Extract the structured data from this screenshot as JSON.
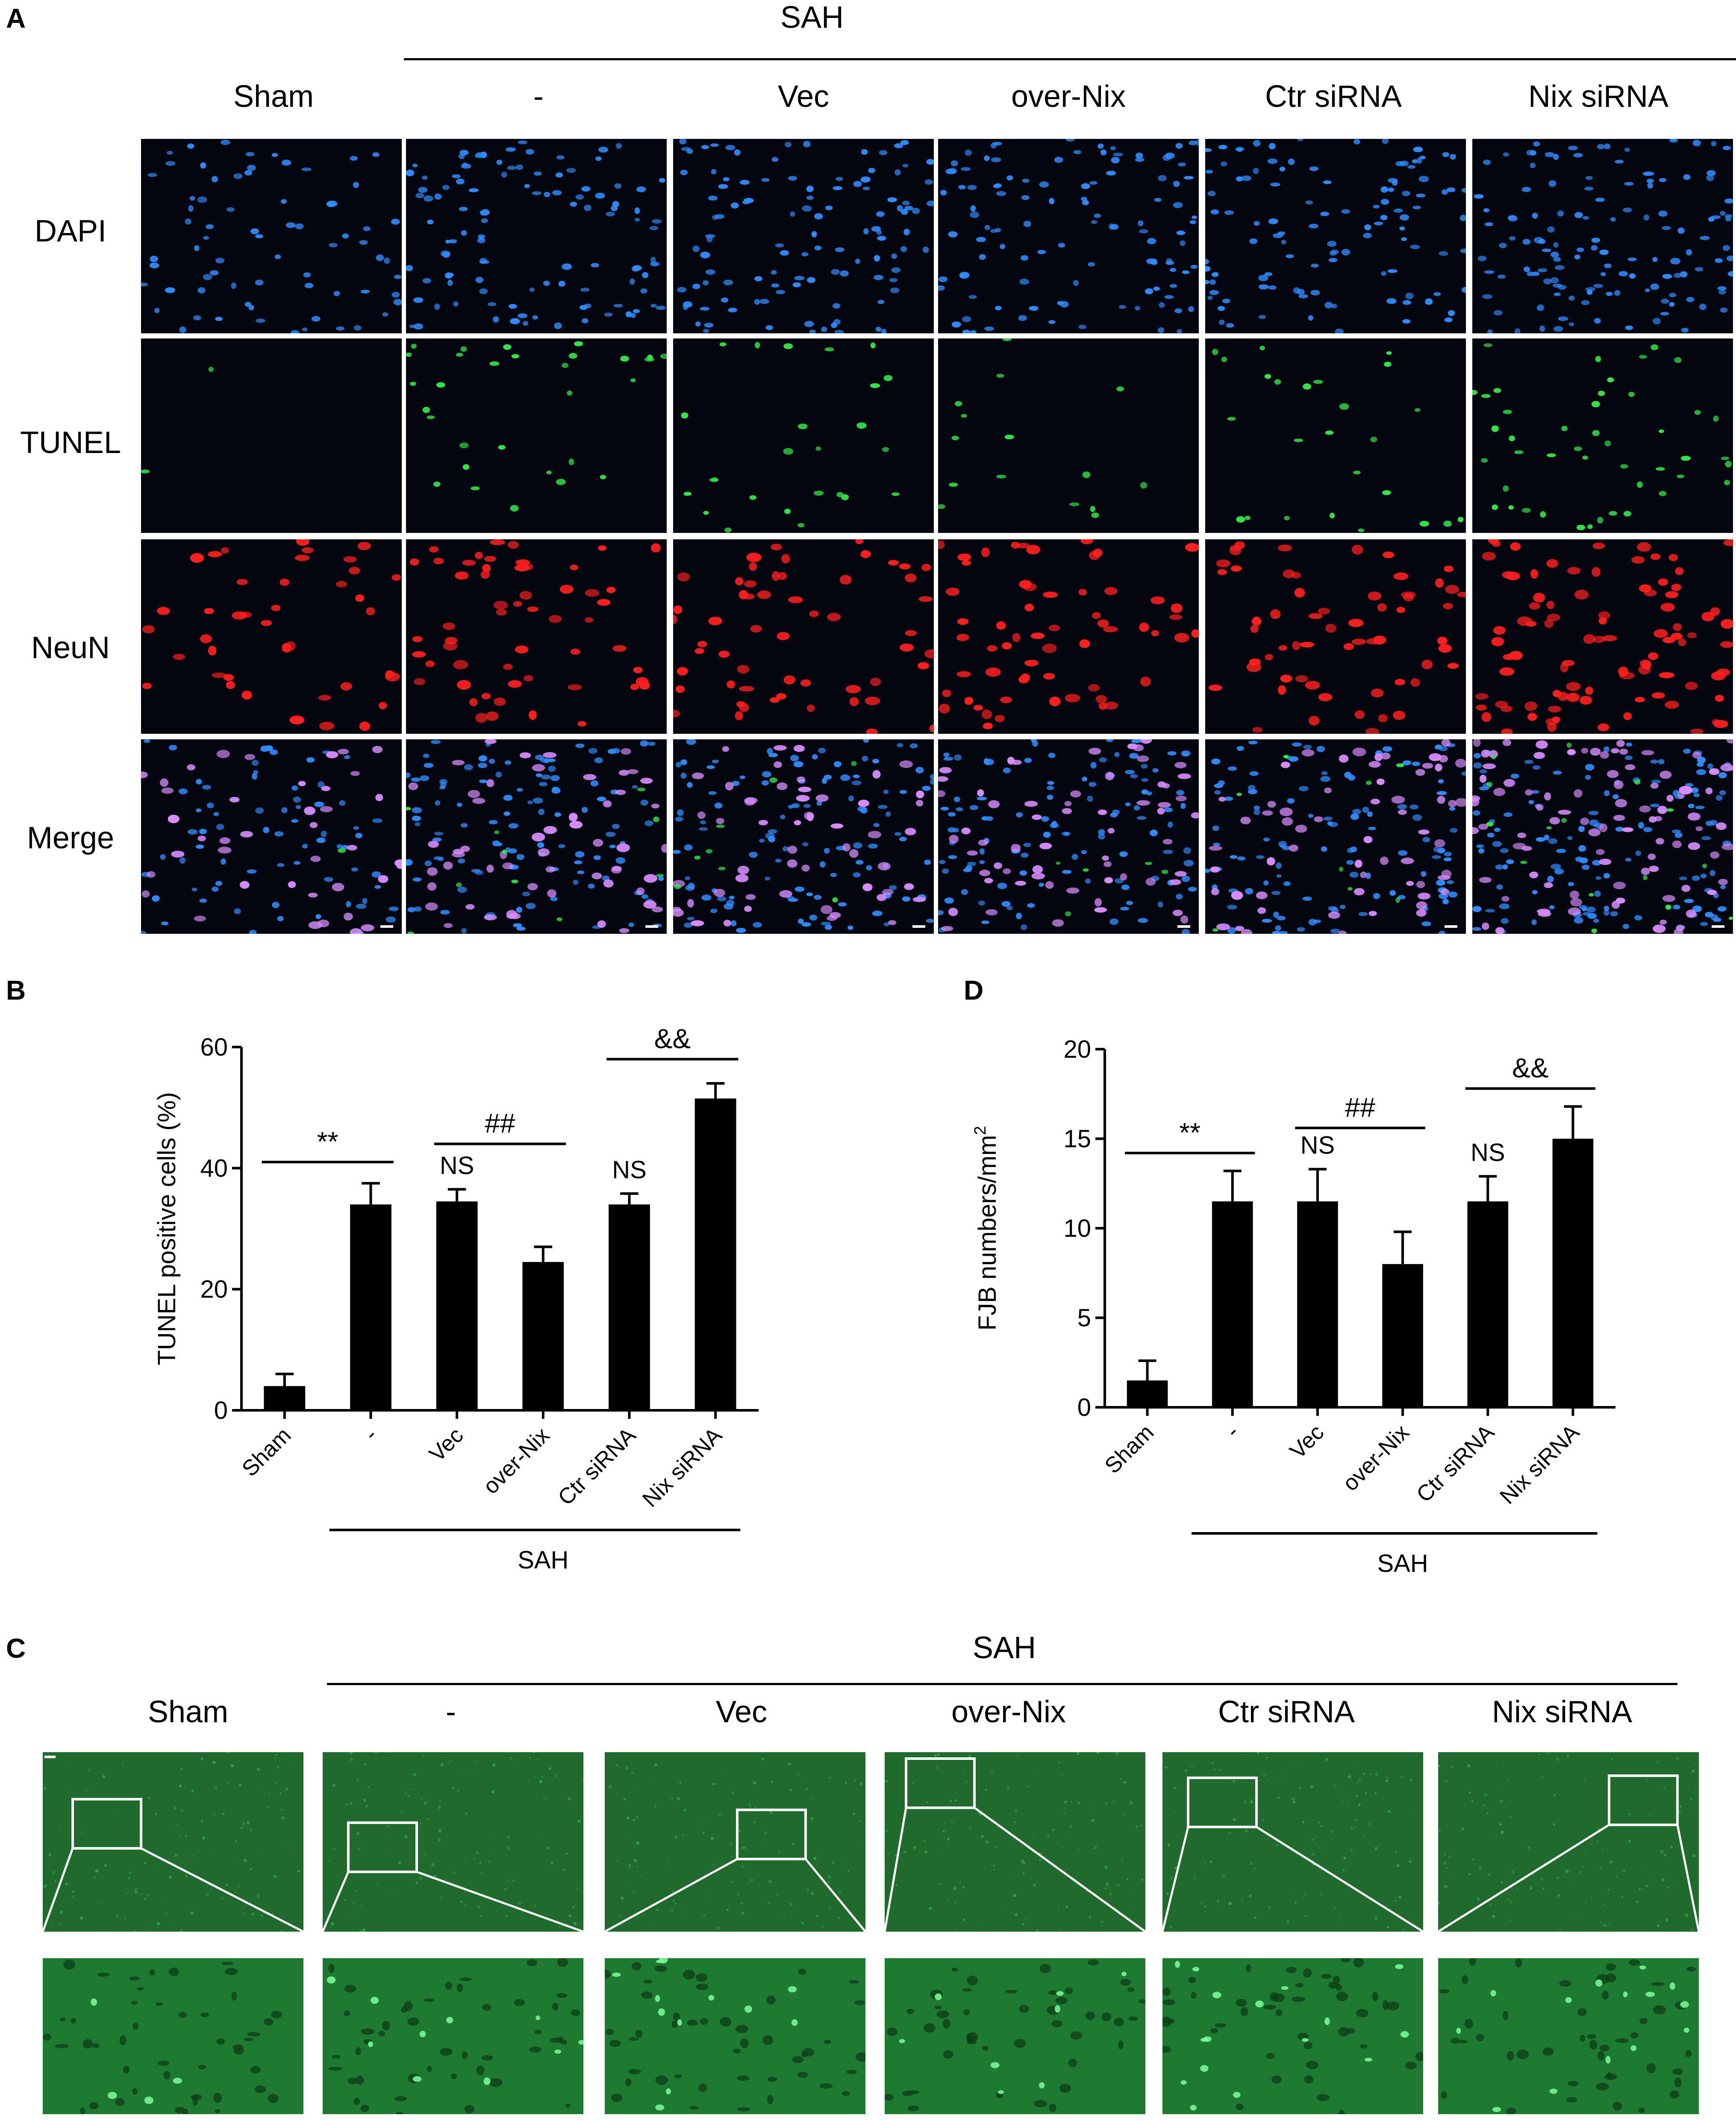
{
  "panel_a": {
    "letter": "A",
    "group_label": "SAH",
    "columns": [
      "Sham",
      "-",
      "Vec",
      "over-Nix",
      "Ctr siRNA",
      "Nix siRNA"
    ],
    "rows": [
      "DAPI",
      "TUNEL",
      "NeuN",
      "Merge"
    ],
    "colors": {
      "DAPI": "#2f8cff",
      "TUNEL": "#32e84a",
      "NeuN": "#ff1f1f",
      "Merge": "#d98cff"
    }
  },
  "chart_data": [
    {
      "panel": "B",
      "type": "bar",
      "categories": [
        "Sham",
        "-",
        "Vec",
        "over-Nix",
        "Ctr siRNA",
        "Nix siRNA"
      ],
      "values": [
        4,
        34,
        34.5,
        24.5,
        34,
        51.5
      ],
      "errors": [
        2,
        3.5,
        2,
        2.5,
        1.8,
        2.5
      ],
      "ylabel": "TUNEL positive cells (%)",
      "ylim": [
        0,
        60
      ],
      "yticks": [
        0,
        20,
        40,
        60
      ],
      "group_label": "SAH",
      "annotations": [
        {
          "text": "**",
          "from": "Sham",
          "to": "-"
        },
        {
          "text": "##",
          "from": "Vec",
          "to": "over-Nix"
        },
        {
          "text": "&&",
          "from": "Ctr siRNA",
          "to": "Nix siRNA"
        },
        {
          "text": "NS",
          "at": "Vec"
        },
        {
          "text": "NS",
          "at": "Ctr siRNA"
        }
      ],
      "bar_color": "#000000"
    },
    {
      "panel": "D",
      "type": "bar",
      "categories": [
        "Sham",
        "-",
        "Vec",
        "over-Nix",
        "Ctr siRNA",
        "Nix siRNA"
      ],
      "values": [
        1.5,
        11.5,
        11.5,
        8,
        11.5,
        15
      ],
      "errors": [
        1.1,
        1.7,
        1.8,
        1.8,
        1.4,
        1.8
      ],
      "ylabel": "FJB numbers/mm",
      "ylabel_sup": "2",
      "ylim": [
        0,
        20
      ],
      "yticks": [
        0,
        5,
        10,
        15,
        20
      ],
      "group_label": "SAH",
      "annotations": [
        {
          "text": "**",
          "from": "Sham",
          "to": "-"
        },
        {
          "text": "##",
          "from": "Vec",
          "to": "over-Nix"
        },
        {
          "text": "&&",
          "from": "Ctr siRNA",
          "to": "Nix siRNA"
        },
        {
          "text": "NS",
          "at": "Vec"
        },
        {
          "text": "NS",
          "at": "Ctr siRNA"
        }
      ],
      "bar_color": "#000000"
    }
  ],
  "panel_b": {
    "letter": "B"
  },
  "panel_d": {
    "letter": "D"
  },
  "panel_c": {
    "letter": "C",
    "group_label": "SAH",
    "columns": [
      "Sham",
      "-",
      "Vec",
      "over-Nix",
      "Ctr siRNA",
      "Nix siRNA"
    ],
    "color": "#2fa84a"
  }
}
